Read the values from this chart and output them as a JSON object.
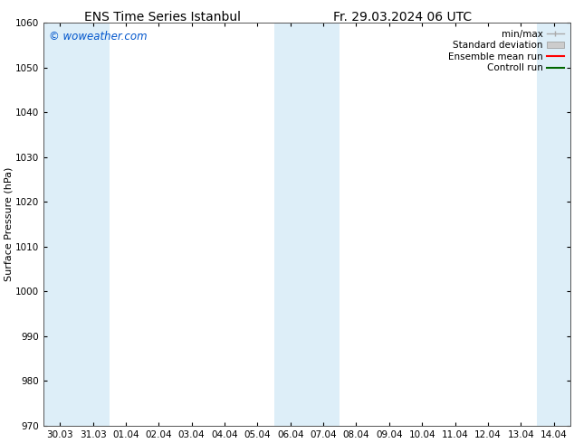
{
  "title_left": "ENS Time Series Istanbul",
  "title_right": "Fr. 29.03.2024 06 UTC",
  "ylabel": "Surface Pressure (hPa)",
  "ylim": [
    970,
    1060
  ],
  "yticks": [
    970,
    980,
    990,
    1000,
    1010,
    1020,
    1030,
    1040,
    1050,
    1060
  ],
  "xtick_labels": [
    "30.03",
    "31.03",
    "01.04",
    "02.04",
    "03.04",
    "04.04",
    "05.04",
    "06.04",
    "07.04",
    "08.04",
    "09.04",
    "10.04",
    "11.04",
    "12.04",
    "13.04",
    "14.04"
  ],
  "xtick_positions": [
    0,
    1,
    2,
    3,
    4,
    5,
    6,
    7,
    8,
    9,
    10,
    11,
    12,
    13,
    14,
    15
  ],
  "xlim": [
    -0.5,
    15.5
  ],
  "watermark": "© woweather.com",
  "watermark_color": "#0055cc",
  "shade_bands": [
    {
      "x_start": -0.5,
      "x_end": 0.5,
      "color": "#ddeef8"
    },
    {
      "x_start": 0.5,
      "x_end": 1.5,
      "color": "#ddeef8"
    },
    {
      "x_start": 6.5,
      "x_end": 7.5,
      "color": "#ddeef8"
    },
    {
      "x_start": 7.5,
      "x_end": 8.5,
      "color": "#ddeef8"
    },
    {
      "x_start": 14.5,
      "x_end": 15.5,
      "color": "#ddeef8"
    }
  ],
  "legend_items": [
    {
      "label": "min/max",
      "type": "errorbar",
      "color": "#aaaaaa"
    },
    {
      "label": "Standard deviation",
      "type": "patch",
      "color": "#cccccc"
    },
    {
      "label": "Ensemble mean run",
      "type": "line",
      "color": "#ff0000"
    },
    {
      "label": "Controll run",
      "type": "line",
      "color": "#006600"
    }
  ],
  "bg_color": "#ffffff",
  "plot_bg_color": "#ffffff",
  "tick_fontsize": 7.5,
  "ylabel_fontsize": 8,
  "title_fontsize": 10,
  "legend_fontsize": 7.5
}
